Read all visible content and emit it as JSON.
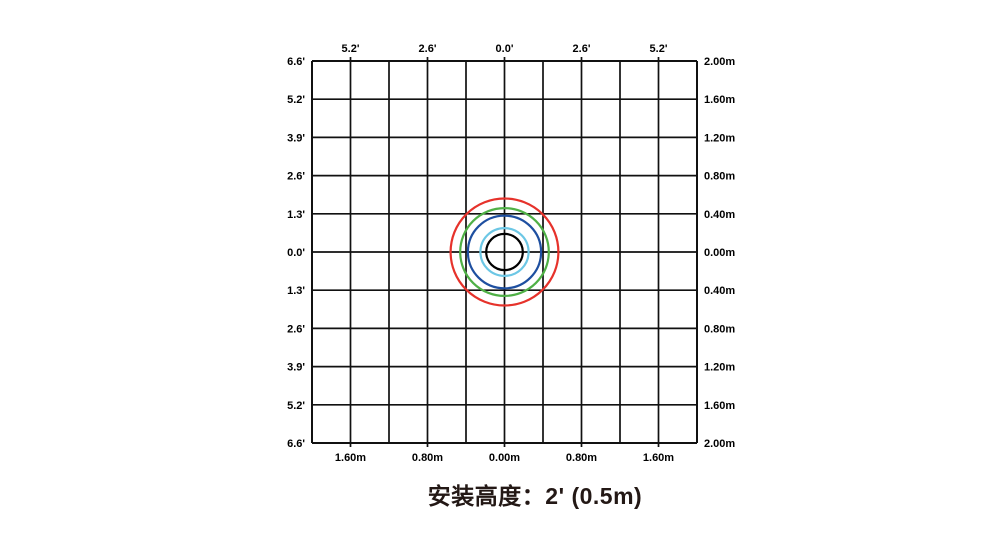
{
  "caption": {
    "color": "#231815"
  },
  "colors": {
    "grid_line": "#111111",
    "tick_label": "#000000",
    "background": "#ffffff"
  },
  "chart_data": {
    "type": "line",
    "subtype": "concentric-coverage-circles",
    "title": "安装高度：2' (0.5m)",
    "legend": "none",
    "grid": {
      "cols": 10,
      "rows": 10,
      "cell_size_m": 0.4,
      "cell_size_ft": 1.3,
      "grid_on": true,
      "line_color": "#111111"
    },
    "axes": {
      "x_range_m": [
        -2.0,
        2.0
      ],
      "y_range_m": [
        -2.0,
        2.0
      ],
      "left_unit": "ft",
      "left_labels": [
        "6.6'",
        "5.2'",
        "3.9'",
        "2.6'",
        "1.3'",
        "0.0'",
        "1.3'",
        "2.6'",
        "3.9'",
        "5.2'",
        "6.6'"
      ],
      "right_unit": "m",
      "right_labels": [
        "2.00m",
        "1.60m",
        "1.20m",
        "0.80m",
        "0.40m",
        "0.00m",
        "0.40m",
        "0.80m",
        "1.20m",
        "1.60m",
        "2.00m"
      ],
      "top_unit": "ft",
      "top_labels": [
        "5.2'",
        "2.6'",
        "0.0'",
        "2.6'",
        "5.2'"
      ],
      "top_label_cols": [
        1,
        3,
        5,
        7,
        9
      ],
      "bottom_unit": "m",
      "bottom_labels": [
        "1.60m",
        "0.80m",
        "0.00m",
        "0.80m",
        "1.60m"
      ],
      "bottom_label_cols": [
        1,
        3,
        5,
        7,
        9
      ]
    },
    "center_m": [
      0,
      0
    ],
    "series": [
      {
        "name": "red-outer-zone",
        "color": "#e6322b",
        "radius_m": 0.56,
        "style": "solid"
      },
      {
        "name": "green-zone",
        "color": "#4fb046",
        "radius_m": 0.46,
        "style": "solid"
      },
      {
        "name": "blue-zone",
        "color": "#1e4fa0",
        "radius_m": 0.38,
        "style": "solid"
      },
      {
        "name": "cyan-zone",
        "color": "#6cc7e5",
        "radius_m": 0.25,
        "style": "solid"
      },
      {
        "name": "black-inner-zone",
        "color": "#000000",
        "radius_m": 0.19,
        "style": "solid"
      }
    ]
  }
}
